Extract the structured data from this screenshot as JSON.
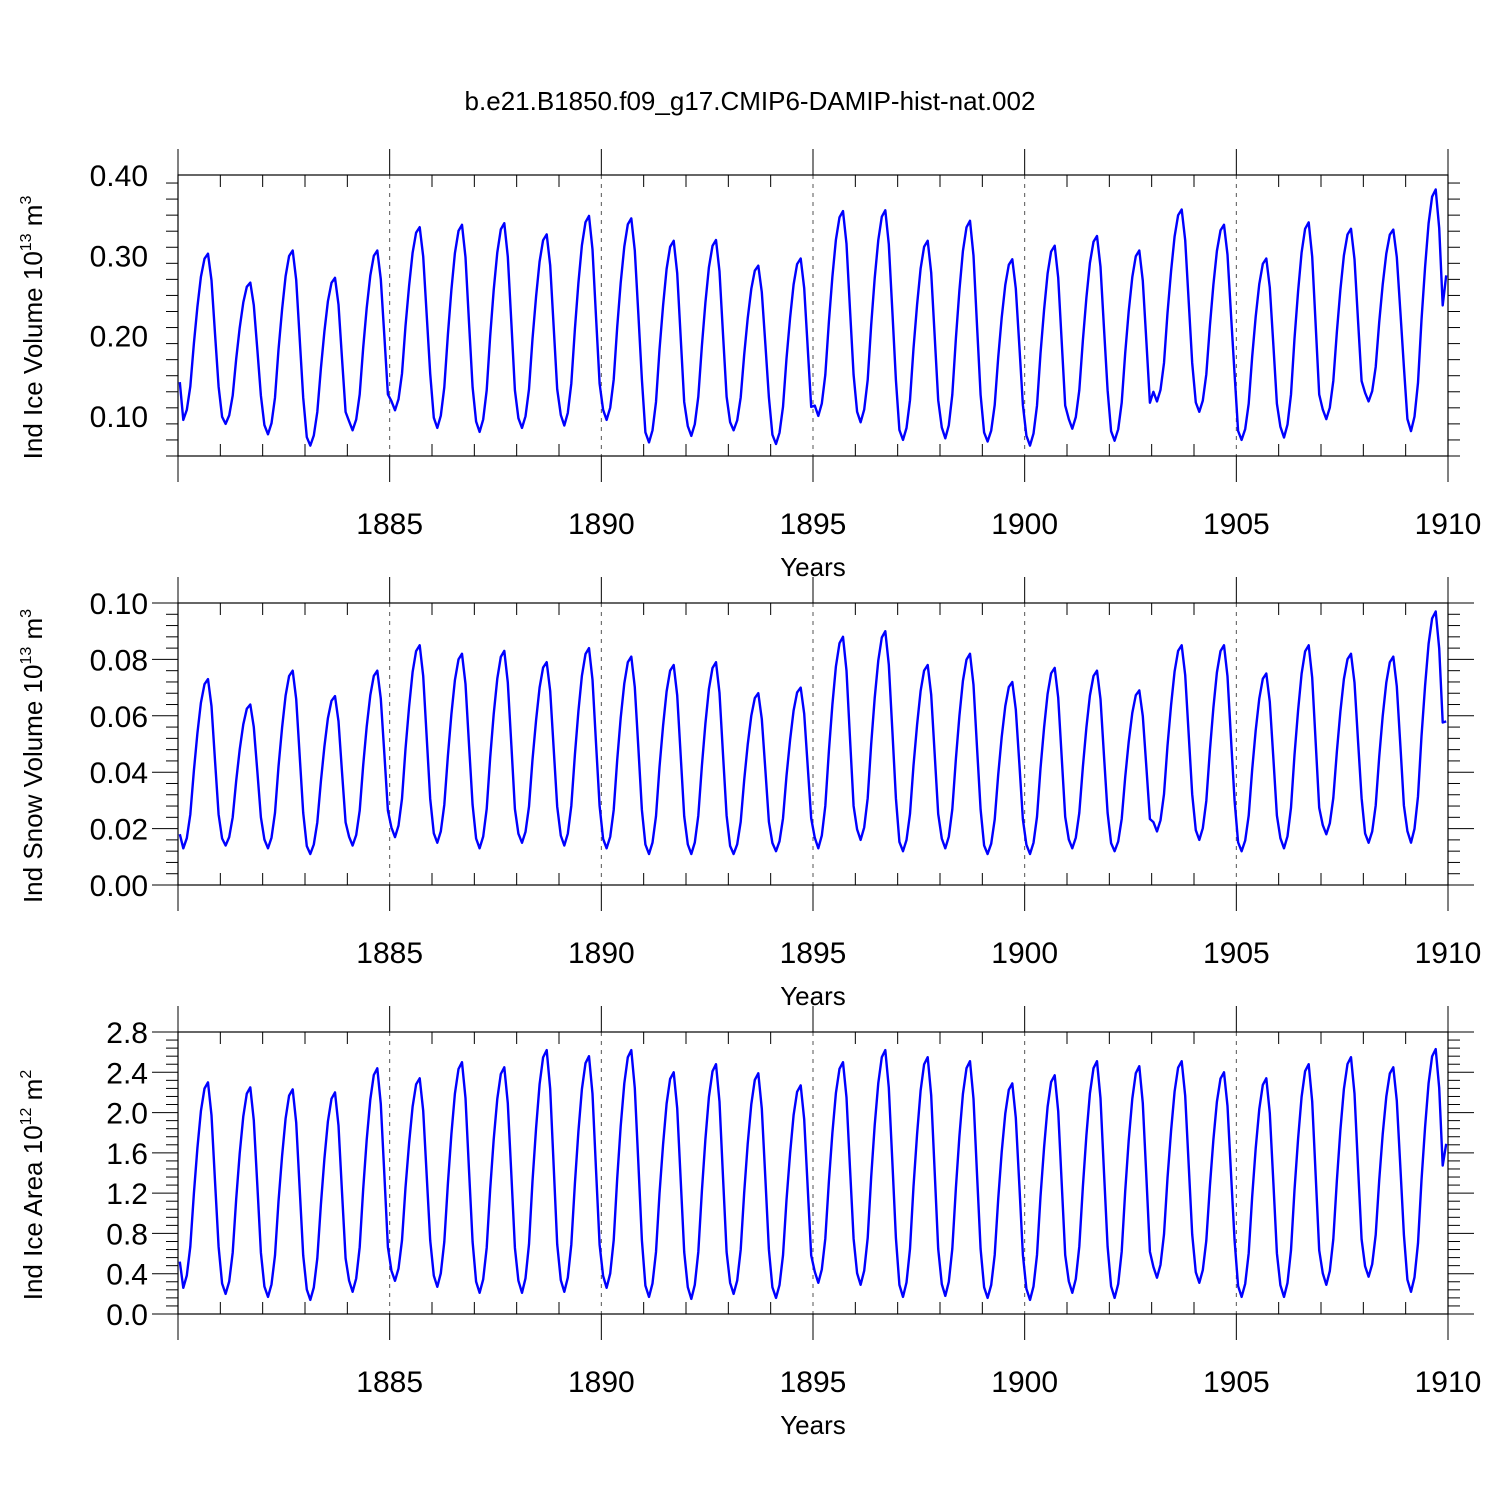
{
  "title": "b.e21.B1850.f09_g17.CMIP6-DAMIP-hist-nat.002",
  "line_color": "#0000ff",
  "chart_data": [
    {
      "type": "line",
      "ylabel": "Ind Ice Volume 10",
      "ylabel_exp": "13",
      "ylabel_unit": " m",
      "ylabel_unit_exp": "3",
      "xlabel": "Years",
      "xlim": [
        1880.0,
        1910.0
      ],
      "ylim": [
        0.05,
        0.4
      ],
      "yticks": [
        "0.10",
        "0.20",
        "0.30",
        "0.40"
      ],
      "ytick_values": [
        0.1,
        0.2,
        0.3,
        0.4
      ],
      "xticks": [
        "1885",
        "1890",
        "1895",
        "1900",
        "1905",
        "1910"
      ],
      "xtick_values": [
        1885,
        1890,
        1895,
        1900,
        1905,
        1910
      ],
      "grid": "vertical-dashed-at-major-x",
      "annual": {
        "years": [
          1880,
          1881,
          1882,
          1883,
          1884,
          1885,
          1886,
          1887,
          1888,
          1889,
          1890,
          1891,
          1892,
          1893,
          1894,
          1895,
          1896,
          1897,
          1898,
          1899,
          1900,
          1901,
          1902,
          1903,
          1904,
          1905,
          1906,
          1907,
          1908,
          1909
        ],
        "min": [
          0.095,
          0.09,
          0.077,
          0.063,
          0.082,
          0.107,
          0.085,
          0.08,
          0.085,
          0.088,
          0.095,
          0.067,
          0.075,
          0.082,
          0.065,
          0.1,
          0.092,
          0.07,
          0.072,
          0.068,
          0.063,
          0.084,
          0.069,
          0.118,
          0.105,
          0.07,
          0.073,
          0.096,
          0.118,
          0.081
        ],
        "max": [
          0.302,
          0.266,
          0.306,
          0.272,
          0.306,
          0.335,
          0.338,
          0.34,
          0.326,
          0.349,
          0.346,
          0.318,
          0.319,
          0.287,
          0.296,
          0.355,
          0.356,
          0.318,
          0.343,
          0.295,
          0.312,
          0.324,
          0.306,
          0.357,
          0.338,
          0.296,
          0.341,
          0.333,
          0.332,
          0.382
        ]
      },
      "start_value": 0.142,
      "end_value": 0.275
    },
    {
      "type": "line",
      "ylabel": "Ind Snow Volume 10",
      "ylabel_exp": "13",
      "ylabel_unit": " m",
      "ylabel_unit_exp": "3",
      "xlabel": "Years",
      "xlim": [
        1880.0,
        1910.0
      ],
      "ylim": [
        0.0,
        0.1
      ],
      "yticks": [
        "0.00",
        "0.02",
        "0.04",
        "0.06",
        "0.08",
        "0.10"
      ],
      "ytick_values": [
        0.0,
        0.02,
        0.04,
        0.06,
        0.08,
        0.1
      ],
      "xticks": [
        "1885",
        "1890",
        "1895",
        "1900",
        "1905",
        "1910"
      ],
      "xtick_values": [
        1885,
        1890,
        1895,
        1900,
        1905,
        1910
      ],
      "grid": "vertical-dashed-at-major-x",
      "annual": {
        "years": [
          1880,
          1881,
          1882,
          1883,
          1884,
          1885,
          1886,
          1887,
          1888,
          1889,
          1890,
          1891,
          1892,
          1893,
          1894,
          1895,
          1896,
          1897,
          1898,
          1899,
          1900,
          1901,
          1902,
          1903,
          1904,
          1905,
          1906,
          1907,
          1908,
          1909
        ],
        "min": [
          0.013,
          0.014,
          0.013,
          0.011,
          0.014,
          0.017,
          0.015,
          0.013,
          0.015,
          0.014,
          0.013,
          0.011,
          0.011,
          0.011,
          0.012,
          0.013,
          0.016,
          0.012,
          0.013,
          0.011,
          0.011,
          0.013,
          0.012,
          0.019,
          0.016,
          0.012,
          0.013,
          0.018,
          0.015,
          0.015
        ],
        "max": [
          0.073,
          0.064,
          0.076,
          0.067,
          0.076,
          0.085,
          0.082,
          0.083,
          0.079,
          0.084,
          0.081,
          0.078,
          0.079,
          0.068,
          0.07,
          0.088,
          0.09,
          0.078,
          0.082,
          0.072,
          0.077,
          0.076,
          0.069,
          0.085,
          0.085,
          0.075,
          0.085,
          0.082,
          0.081,
          0.097
        ]
      },
      "start_value": 0.018,
      "end_value": 0.058
    },
    {
      "type": "line",
      "ylabel": "Ind Ice Area 10",
      "ylabel_exp": "12",
      "ylabel_unit": " m",
      "ylabel_unit_exp": "2",
      "xlabel": "Years",
      "xlim": [
        1880.0,
        1910.0
      ],
      "ylim": [
        0.0,
        2.8
      ],
      "yticks": [
        "0.0",
        "0.4",
        "0.8",
        "1.2",
        "1.6",
        "2.0",
        "2.4",
        "2.8"
      ],
      "ytick_values": [
        0.0,
        0.4,
        0.8,
        1.2,
        1.6,
        2.0,
        2.4,
        2.8
      ],
      "xticks": [
        "1885",
        "1890",
        "1895",
        "1900",
        "1905",
        "1910"
      ],
      "xtick_values": [
        1885,
        1890,
        1895,
        1900,
        1905,
        1910
      ],
      "grid": "vertical-dashed-at-major-x",
      "annual": {
        "years": [
          1880,
          1881,
          1882,
          1883,
          1884,
          1885,
          1886,
          1887,
          1888,
          1889,
          1890,
          1891,
          1892,
          1893,
          1894,
          1895,
          1896,
          1897,
          1898,
          1899,
          1900,
          1901,
          1902,
          1903,
          1904,
          1905,
          1906,
          1907,
          1908,
          1909
        ],
        "min": [
          0.26,
          0.2,
          0.17,
          0.14,
          0.22,
          0.33,
          0.27,
          0.21,
          0.21,
          0.22,
          0.26,
          0.17,
          0.15,
          0.2,
          0.16,
          0.31,
          0.29,
          0.17,
          0.18,
          0.16,
          0.14,
          0.21,
          0.16,
          0.36,
          0.31,
          0.17,
          0.17,
          0.29,
          0.37,
          0.22
        ],
        "max": [
          2.3,
          2.25,
          2.23,
          2.2,
          2.44,
          2.34,
          2.5,
          2.45,
          2.62,
          2.56,
          2.62,
          2.4,
          2.48,
          2.39,
          2.27,
          2.5,
          2.62,
          2.55,
          2.51,
          2.29,
          2.37,
          2.51,
          2.46,
          2.51,
          2.4,
          2.34,
          2.48,
          2.55,
          2.45,
          2.63
        ]
      },
      "start_value": 0.52,
      "end_value": 1.69
    }
  ]
}
